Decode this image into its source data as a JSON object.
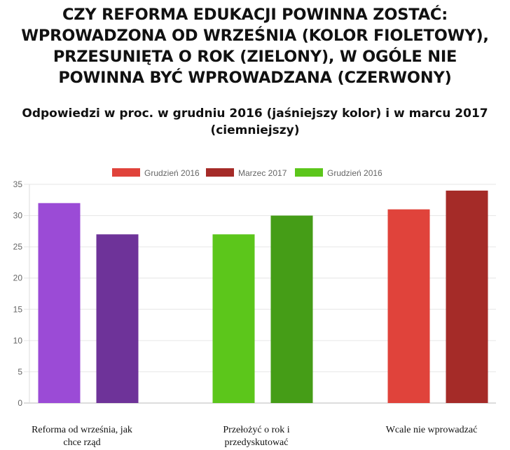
{
  "title": "CZY REFORMA EDUKACJI POWINNA ZOSTAĆ: WPROWADZONA OD WRZEŚNIA (KOLOR FIOLETOWY), PRZESUNIĘTA O ROK (ZIELONY), W OGÓLE NIE POWINNA BYĆ WPROWADZANA (CZERWONY)",
  "title_lines": [
    "CZY REFORMA EDUKACJI POWINNA ZOSTAĆ:",
    "WPROWADZONA OD WRZEŚNIA (KOLOR FIOLETOWY),",
    "PRZESUNIĘTA O ROK (ZIELONY), W OGÓLE NIE",
    "POWINNA BYĆ WPROWADZANA (CZERWONY)"
  ],
  "subtitle_lines": [
    "Odpowiedzi w proc. w grudniu 2016 (jaśniejszy kolor) i w marcu 2017",
    "(ciemniejszy)"
  ],
  "chart_data": {
    "type": "bar",
    "categories": [
      "Reforma od września, jak chce rząd",
      "Przełożyć o rok i przedyskutować",
      "Wcale nie wprowadzać"
    ],
    "category_lines": [
      [
        "Reforma od września, jak",
        "chce rząd"
      ],
      [
        "Przełożyć o rok i",
        "przedyskutować"
      ],
      [
        "Wcale nie wprowadzać"
      ]
    ],
    "bars": [
      {
        "category": 0,
        "period": "dec2016",
        "value": 32,
        "color": "#9b4bd6"
      },
      {
        "category": 0,
        "period": "mar2017",
        "value": 27,
        "color": "#6e3399"
      },
      {
        "category": 1,
        "period": "dec2016",
        "value": 27,
        "color": "#5cc61b"
      },
      {
        "category": 1,
        "period": "mar2017",
        "value": 30,
        "color": "#459d17"
      },
      {
        "category": 2,
        "period": "dec2016",
        "value": 31,
        "color": "#e0433b"
      },
      {
        "category": 2,
        "period": "mar2017",
        "value": 34,
        "color": "#a52b28"
      }
    ],
    "legend": [
      {
        "name": "Grudzień 2016",
        "color": "#e0433b"
      },
      {
        "name": "Marzec 2017",
        "color": "#a52b28"
      },
      {
        "name": "Grudzień  2016",
        "color": "#5cc61b"
      }
    ],
    "legend_position": "top",
    "ylim": [
      0,
      35
    ],
    "yticks": [
      0,
      5,
      10,
      15,
      20,
      25,
      30,
      35
    ],
    "grid": true,
    "xlabel": "",
    "ylabel": ""
  }
}
